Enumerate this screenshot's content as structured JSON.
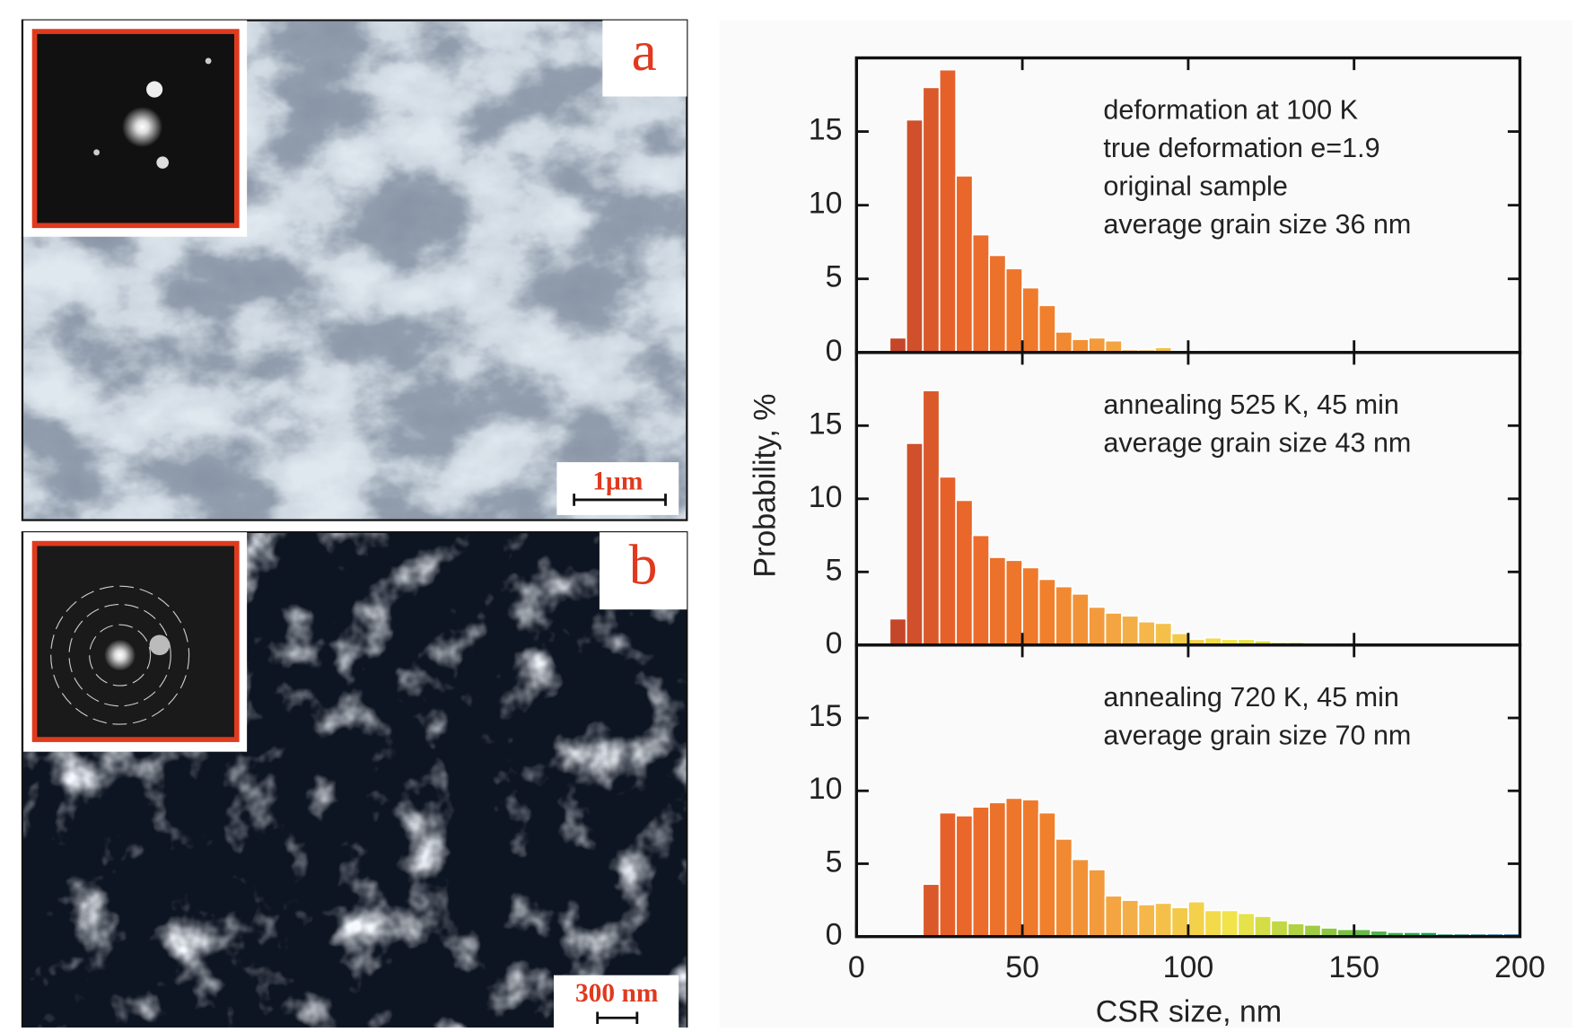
{
  "images": [
    {
      "label": "a",
      "scale_bar": "1µm"
    },
    {
      "label": "b",
      "scale_bar": "300 nm"
    }
  ],
  "chart_data": [
    {
      "type": "histogram",
      "annotation": [
        "deformation at 100 K",
        "true deformation e=1.9",
        "original sample",
        "average grain size 36 nm"
      ],
      "bins": [
        10,
        15,
        20,
        25,
        30,
        35,
        40,
        45,
        50,
        55,
        60,
        65,
        70,
        75,
        80,
        85,
        90,
        95,
        100,
        105
      ],
      "values": [
        1,
        15.8,
        18,
        19.2,
        12,
        8,
        6.6,
        5.7,
        4.4,
        3.2,
        1.4,
        0.9,
        1,
        0.8,
        0.2,
        0.2,
        0.35,
        0.1,
        0.1
      ],
      "colors": [
        "#a8322a",
        "#e8632a",
        "#f07f2c",
        "#f5b44a",
        "#f1e64a",
        "#8cc63f",
        "#1aa35a",
        "#1c5fa8"
      ],
      "xlim": [
        0,
        200
      ],
      "ylim": [
        0,
        20
      ],
      "yticks": [
        0,
        5,
        10,
        15
      ]
    },
    {
      "type": "histogram",
      "annotation": [
        "annealing 525 K, 45 min",
        "average grain size 43 nm"
      ],
      "y_label": "Probability, %",
      "bins": [
        10,
        15,
        20,
        25,
        30,
        35,
        40,
        45,
        50,
        55,
        60,
        65,
        70,
        75,
        80,
        85,
        90,
        95,
        100,
        105,
        110,
        115,
        120,
        125,
        130,
        135,
        140,
        145,
        150,
        155,
        160
      ],
      "values": [
        1.8,
        13.8,
        17.4,
        11.5,
        9.9,
        7.5,
        6,
        5.8,
        5.3,
        4.5,
        4,
        3.5,
        2.6,
        2.2,
        2,
        1.6,
        1.5,
        0.8,
        0.4,
        0.5,
        0.4,
        0.4,
        0.3,
        0.2,
        0.2,
        0.1,
        0.1,
        0.05,
        0.05,
        0.05
      ],
      "colors": [
        "#a8322a",
        "#e8632a",
        "#f07f2c",
        "#f5b44a",
        "#f1e64a",
        "#8cc63f",
        "#1aa35a",
        "#1c5fa8"
      ],
      "xlim": [
        0,
        200
      ],
      "ylim": [
        0,
        20
      ],
      "yticks": [
        0,
        5,
        10,
        15
      ]
    },
    {
      "type": "histogram",
      "annotation": [
        "annealing 720 K, 45 min",
        "average grain size 70 nm"
      ],
      "x_label": "CSR size, nm",
      "bins": [
        20,
        25,
        30,
        35,
        40,
        45,
        50,
        55,
        60,
        65,
        70,
        75,
        80,
        85,
        90,
        95,
        100,
        105,
        110,
        115,
        120,
        125,
        130,
        135,
        140,
        145,
        150,
        155,
        160,
        165,
        170,
        175,
        180,
        185,
        190,
        195,
        200
      ],
      "values": [
        3.6,
        8.5,
        8.3,
        8.9,
        9.2,
        9.5,
        9.4,
        8.5,
        6.7,
        5.3,
        4.6,
        2.8,
        2.5,
        2.2,
        2.3,
        2,
        2.4,
        1.8,
        1.8,
        1.6,
        1.4,
        1.1,
        0.9,
        0.8,
        0.6,
        0.5,
        0.5,
        0.4,
        0.3,
        0.3,
        0.3,
        0.2,
        0.2,
        0.2,
        0.2,
        0.2
      ],
      "colors": [
        "#a8322a",
        "#e8632a",
        "#f07f2c",
        "#f5b44a",
        "#f1e64a",
        "#8cc63f",
        "#1aa35a",
        "#1c5fa8"
      ],
      "xlim": [
        0,
        200
      ],
      "ylim": [
        0,
        20
      ],
      "yticks": [
        0,
        5,
        10,
        15
      ],
      "xticks": [
        0,
        50,
        100,
        150,
        200
      ]
    }
  ]
}
